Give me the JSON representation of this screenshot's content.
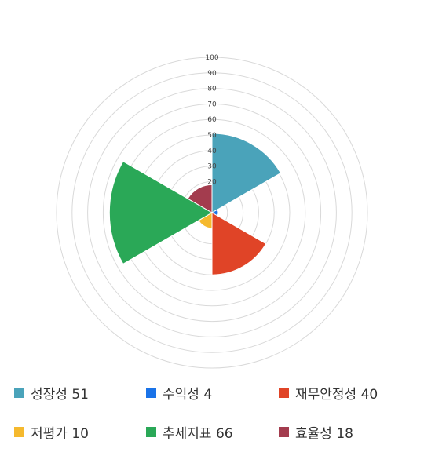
{
  "chart_data": {
    "type": "polar-area",
    "r_ticks": [
      20,
      30,
      40,
      50,
      60,
      70,
      80,
      90,
      100
    ],
    "rlim": [
      0,
      100
    ],
    "grid": true,
    "legend_position": "bottom",
    "series": [
      {
        "name": "성장성",
        "value": 51,
        "color": "#4AA3BA",
        "label": "성장성 51"
      },
      {
        "name": "수익성",
        "value": 4,
        "color": "#1A73E8",
        "label": "수익성 4"
      },
      {
        "name": "재무안정성",
        "value": 40,
        "color": "#E04427",
        "label": "재무안정성 40"
      },
      {
        "name": "저평가",
        "value": 10,
        "color": "#F5B92E",
        "label": "저평가 10"
      },
      {
        "name": "추세지표",
        "value": 66,
        "color": "#2AA857",
        "label": "추세지표 66"
      },
      {
        "name": "효율성",
        "value": 18,
        "color": "#A33C4E",
        "label": "효율성 18"
      }
    ]
  }
}
